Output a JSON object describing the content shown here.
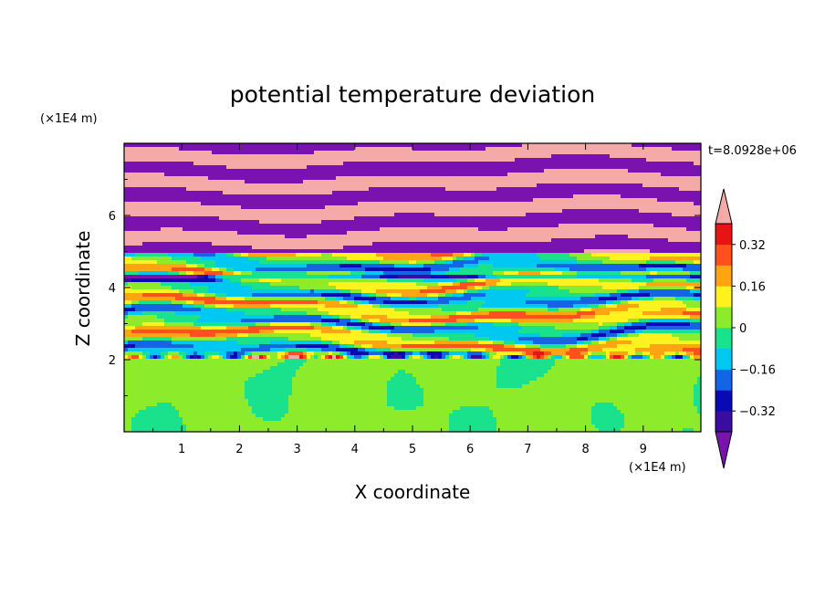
{
  "chart_data": {
    "type": "heatmap",
    "title": "potential temperature deviation",
    "xlabel": "X coordinate",
    "ylabel": "Z coordinate",
    "x_unit": "(×1E4 m)",
    "y_unit": "(×1E4 m)",
    "time_label": "t=8.0928e+06",
    "xlim": [
      0,
      10
    ],
    "ylim": [
      0,
      8
    ],
    "x_ticks": [
      1,
      2,
      3,
      4,
      5,
      6,
      7,
      8,
      9
    ],
    "y_ticks": [
      2,
      4,
      6
    ],
    "colorbar": {
      "levels": [
        -0.4,
        -0.32,
        -0.24,
        -0.16,
        -0.08,
        0,
        0.08,
        0.16,
        0.24,
        0.32,
        0.4
      ],
      "tick_labels": [
        "0.32",
        "0.16",
        "0",
        "−0.16",
        "−0.32"
      ],
      "tick_values": [
        0.32,
        0.16,
        0,
        -0.16,
        -0.32
      ],
      "colors": [
        "#7a12b0",
        "#3a0ca0",
        "#0a0ab4",
        "#1464e6",
        "#00c8f0",
        "#19e18c",
        "#8cec2c",
        "#fff21e",
        "#ffa514",
        "#ff501e",
        "#e61414",
        "#f5aaaa"
      ],
      "extend": "both"
    },
    "field_summary": {
      "z_below_2": "weak perturbations, mostly 0 to 0.08 with cellular patches of -0.08 to 0",
      "z_2_to_5": "layered bands between -0.16 and 0.32",
      "z_above_5": "alternating bands beyond +0.4 and below -0.4"
    }
  }
}
